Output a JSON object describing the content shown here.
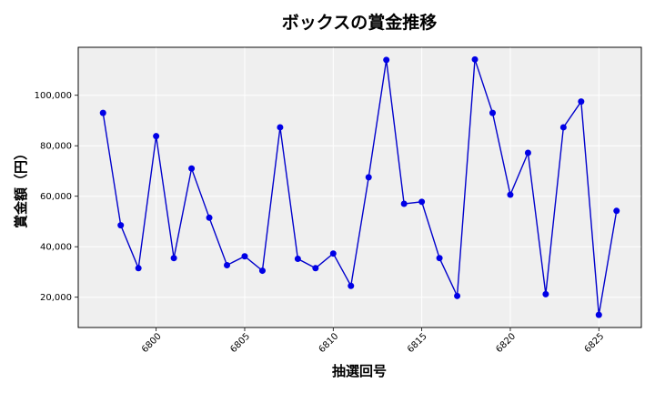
{
  "chart_data": {
    "type": "line",
    "title": "ボックスの賞金推移",
    "xlabel": "抽選回号",
    "ylabel": "賞金額（円）",
    "x_ticks": [
      6800,
      6805,
      6810,
      6815,
      6820,
      6825
    ],
    "y_ticks": [
      20000,
      40000,
      60000,
      80000,
      100000
    ],
    "y_tick_labels": [
      "20,000",
      "40,000",
      "60,000",
      "80,000",
      "100,000"
    ],
    "xlim": [
      6795.6,
      6827.4
    ],
    "ylim": [
      8000,
      119000
    ],
    "grid": true,
    "line_color": "#0000cc",
    "marker_color": "#0000e6",
    "plot_bg": "#efefef",
    "x": [
      6797,
      6798,
      6799,
      6800,
      6801,
      6802,
      6803,
      6804,
      6805,
      6806,
      6807,
      6808,
      6809,
      6810,
      6811,
      6812,
      6813,
      6814,
      6815,
      6816,
      6817,
      6818,
      6819,
      6820,
      6821,
      6822,
      6823,
      6824,
      6825,
      6826
    ],
    "y": [
      93000,
      48500,
      31500,
      83800,
      35500,
      71000,
      51500,
      32700,
      36200,
      30500,
      87300,
      35200,
      31500,
      37300,
      24500,
      67500,
      114000,
      57000,
      57800,
      35500,
      20500,
      114200,
      93000,
      60600,
      77200,
      21200,
      87300,
      97500,
      13000,
      54200
    ]
  }
}
